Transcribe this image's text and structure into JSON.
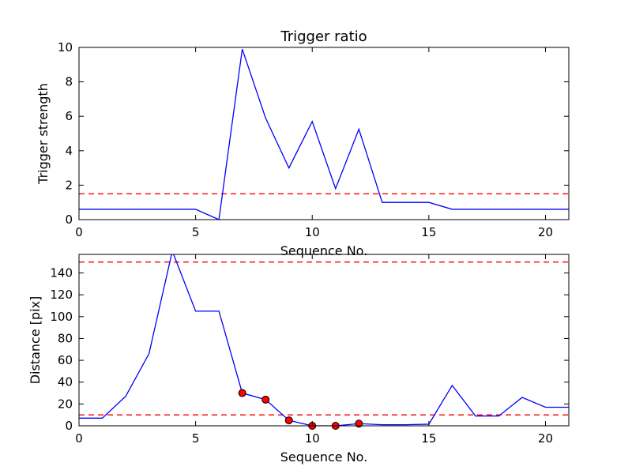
{
  "chart_data": [
    {
      "type": "line",
      "title": "Trigger ratio",
      "xlabel": "Sequence No.",
      "ylabel": "Trigger strength",
      "xlim": [
        0,
        21
      ],
      "ylim": [
        0,
        10
      ],
      "xticks": [
        0,
        5,
        10,
        15,
        20
      ],
      "yticks": [
        0,
        2,
        4,
        6,
        8,
        10
      ],
      "grid": false,
      "x": [
        0,
        1,
        2,
        3,
        4,
        5,
        6,
        7,
        8,
        9,
        10,
        11,
        12,
        13,
        14,
        15,
        16,
        17,
        18,
        19,
        20,
        21
      ],
      "series": [
        {
          "values": [
            0.6,
            0.6,
            0.6,
            0.6,
            0.6,
            0.6,
            0.0,
            9.9,
            5.9,
            3.0,
            5.7,
            1.8,
            5.25,
            1.0,
            1.0,
            1.0,
            0.6,
            0.6,
            0.6,
            0.6,
            0.6,
            0.6
          ],
          "color": "#0000ff"
        }
      ],
      "thresholds": [
        {
          "value": 1.5,
          "color": "#ff0000",
          "style": "dashed"
        }
      ]
    },
    {
      "type": "line",
      "title": "",
      "xlabel": "Sequence No.",
      "ylabel": "Distance [pix]",
      "xlim": [
        0,
        21
      ],
      "ylim": [
        0,
        157
      ],
      "xticks": [
        0,
        5,
        10,
        15,
        20
      ],
      "yticks": [
        0,
        20,
        40,
        60,
        80,
        100,
        120,
        140
      ],
      "grid": false,
      "x": [
        0,
        1,
        2,
        3,
        4,
        5,
        6,
        7,
        8,
        9,
        10,
        11,
        12,
        13,
        14,
        15,
        16,
        17,
        18,
        19,
        20,
        21
      ],
      "series": [
        {
          "values": [
            7,
            7,
            27,
            66,
            160,
            105,
            105,
            30,
            24,
            5,
            0,
            0,
            2,
            1,
            1,
            1.5,
            37,
            9,
            9,
            26,
            17,
            17
          ],
          "color": "#0000ff"
        }
      ],
      "markers": {
        "x": [
          7,
          8,
          9,
          10,
          11,
          12
        ],
        "y": [
          30,
          24,
          5,
          0,
          0,
          2
        ],
        "color": "#ff0000"
      },
      "thresholds": [
        {
          "value": 10,
          "color": "#ff0000",
          "style": "dashed"
        },
        {
          "value": 150,
          "color": "#ff0000",
          "style": "dashed"
        }
      ]
    }
  ]
}
